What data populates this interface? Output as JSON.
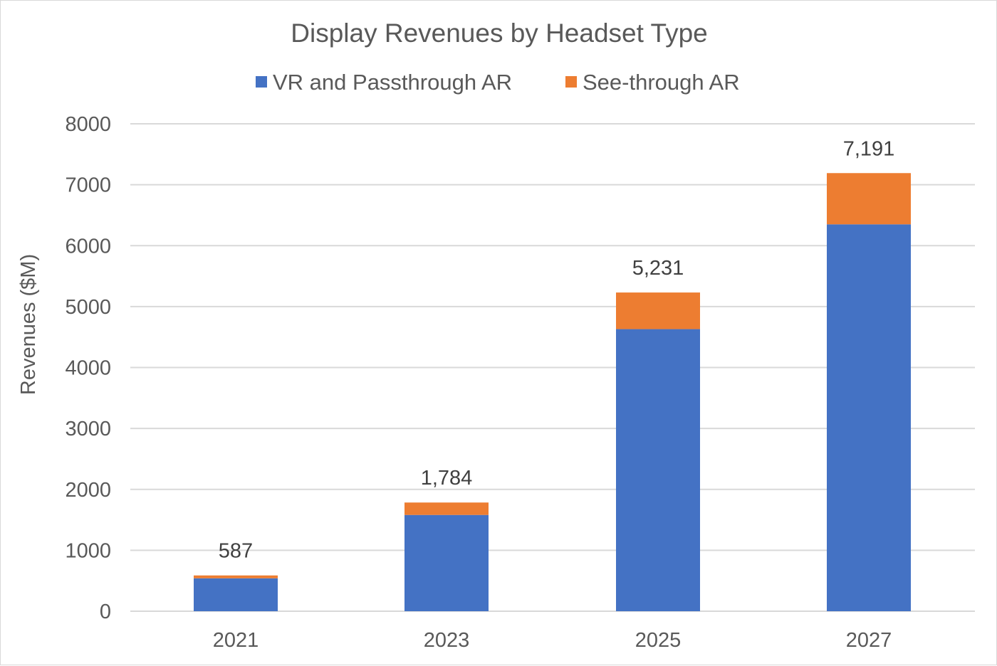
{
  "chart_data": {
    "type": "bar",
    "stacked": true,
    "title": "Display Revenues by Headset Type",
    "xlabel": "",
    "ylabel": "Revenues ($M)",
    "ylim": [
      0,
      8000
    ],
    "yticks": [
      0,
      1000,
      2000,
      3000,
      4000,
      5000,
      6000,
      7000,
      8000
    ],
    "grid": true,
    "legend_position": "top",
    "categories": [
      "2021",
      "2023",
      "2025",
      "2027"
    ],
    "series": [
      {
        "name": "VR and Passthrough AR",
        "color": "#4472C4",
        "values": [
          540,
          1580,
          4630,
          6350
        ]
      },
      {
        "name": "See-through AR",
        "color": "#ED7D31",
        "values": [
          47,
          204,
          601,
          841
        ]
      }
    ],
    "totals": [
      587,
      1784,
      5231,
      7191
    ],
    "total_labels": [
      "587",
      "1,784",
      "5,231",
      "7,191"
    ]
  }
}
